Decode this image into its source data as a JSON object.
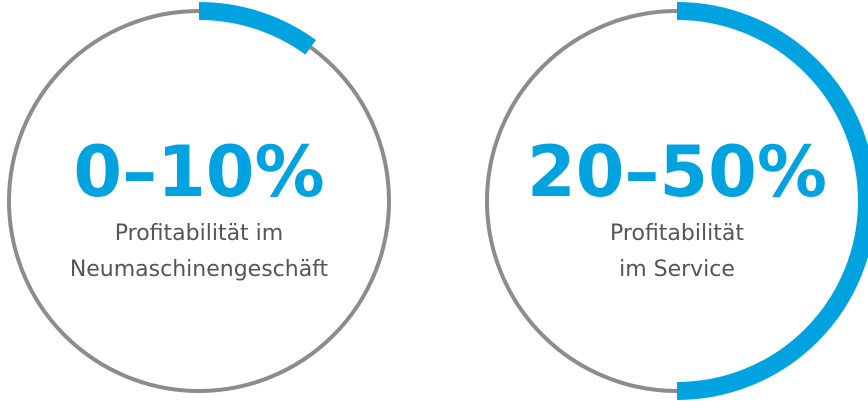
{
  "chart_data": [
    {
      "type": "gauge",
      "value_label": "0–10%",
      "range": [
        0,
        10
      ],
      "caption_lines": [
        "Profitabilität im",
        "Neumaschinengeschäft"
      ]
    },
    {
      "type": "gauge",
      "value_label": "20–50%",
      "range": [
        20,
        50
      ],
      "caption_lines": [
        "Profitabilität",
        "im Service"
      ]
    }
  ],
  "colors": {
    "accent": "#00a3e0",
    "ring": "#8c8c8c",
    "text": "#555555"
  }
}
